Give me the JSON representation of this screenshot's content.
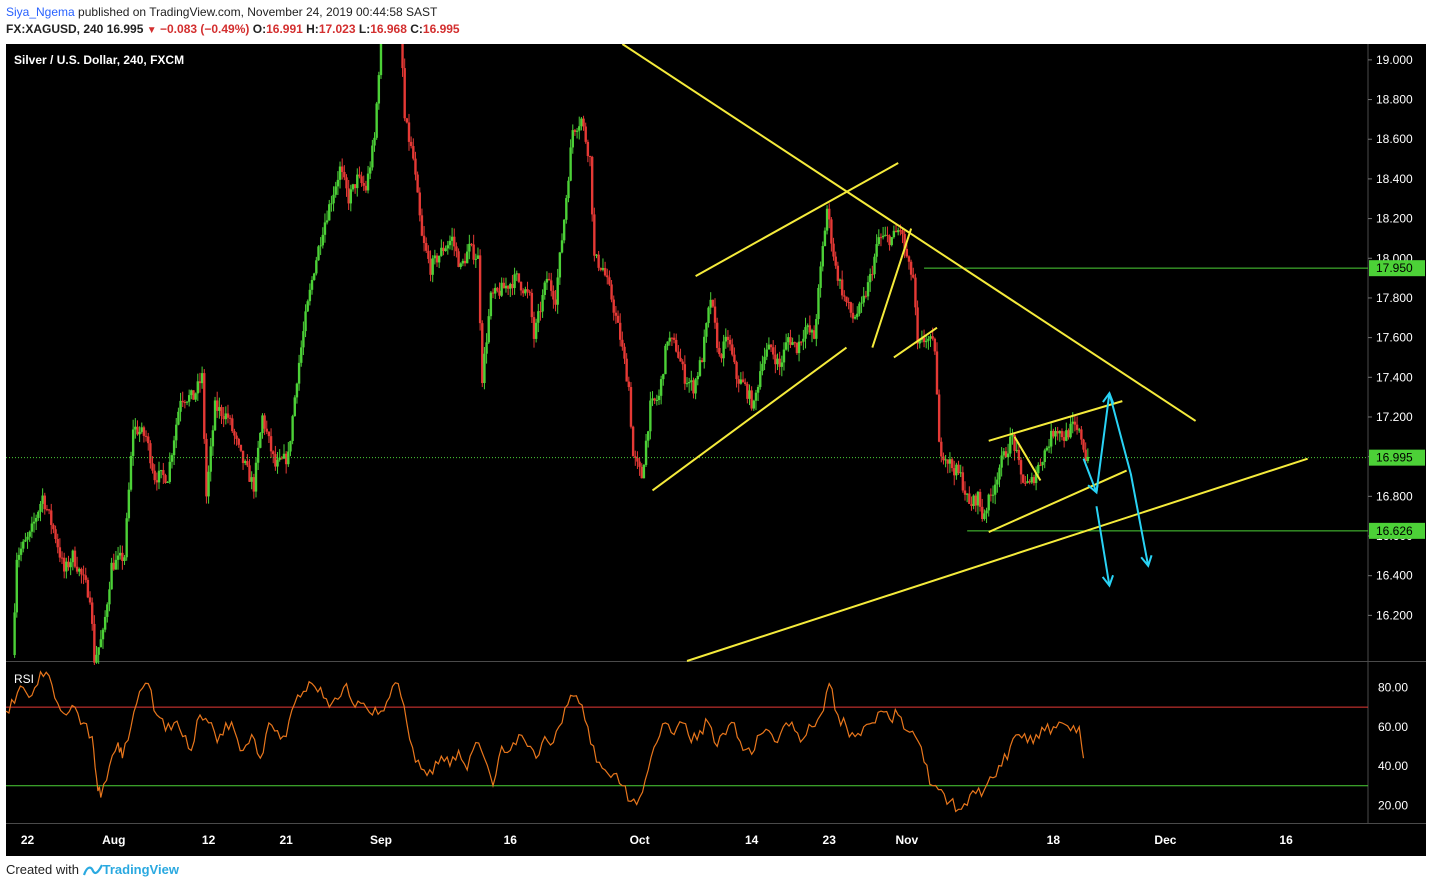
{
  "header": {
    "author": "Siya_Ngema",
    "published_text": "published on TradingView.com, November 24, 2019 00:44:58 SAST",
    "symbol": "FX:XAGUSD, 240",
    "last": "16.995",
    "change": "−0.083 (−0.49%)",
    "open_label": "O:",
    "open": "16.991",
    "high_label": "H:",
    "high": "17.023",
    "low_label": "L:",
    "low": "16.968",
    "close_label": "C:",
    "close": "16.995"
  },
  "footer": {
    "created_with": "Created with",
    "brand": "TradingView"
  },
  "colors": {
    "background": "#000000",
    "bull": "#4cd137",
    "bear": "#e53935",
    "trendline": "#f5eb3b",
    "arrow": "#29d3f5",
    "rsi": "#e8761c",
    "rsi_upper": "#e53935",
    "rsi_lower": "#4cd137",
    "level": "#4cd137"
  },
  "chart_data": [
    {
      "type": "candlestick",
      "title": "Silver / U.S. Dollar, 240, FXCM",
      "ylim": [
        15.97,
        19.08
      ],
      "y_ticks": [
        19.0,
        18.8,
        18.6,
        18.4,
        18.2,
        18.0,
        17.8,
        17.6,
        17.4,
        17.2,
        17.0,
        16.8,
        16.6,
        16.4,
        16.2
      ],
      "y_tick_labels": [
        "19.000",
        "18.800",
        "18.600",
        "18.400",
        "18.200",
        "18.000",
        "17.800",
        "17.600",
        "17.400",
        "17.200",
        "17.000",
        "16.800",
        "16.600",
        "16.400",
        "16.200"
      ],
      "x_ticks": [
        {
          "label": "22",
          "day": 0
        },
        {
          "label": "Aug",
          "day": 10
        },
        {
          "label": "12",
          "day": 21
        },
        {
          "label": "21",
          "day": 30
        },
        {
          "label": "Sep",
          "day": 41
        },
        {
          "label": "16",
          "day": 56
        },
        {
          "label": "Oct",
          "day": 71
        },
        {
          "label": "14",
          "day": 84
        },
        {
          "label": "23",
          "day": 93
        },
        {
          "label": "Nov",
          "day": 102
        },
        {
          "label": "18",
          "day": 119
        },
        {
          "label": "Dec",
          "day": 132
        },
        {
          "label": "16",
          "day": 146
        }
      ],
      "xlim": [
        -2.5,
        155.5
      ],
      "path_points": [
        [
          -1.5,
          16.0
        ],
        [
          -1.0,
          16.5
        ],
        [
          0.5,
          16.6
        ],
        [
          2.0,
          16.8
        ],
        [
          3.5,
          16.6
        ],
        [
          4.5,
          16.42
        ],
        [
          5.5,
          16.5
        ],
        [
          6.5,
          16.4
        ],
        [
          7.5,
          16.3
        ],
        [
          8.0,
          15.98
        ],
        [
          9.0,
          16.1
        ],
        [
          10.0,
          16.45
        ],
        [
          11.5,
          16.5
        ],
        [
          12.5,
          17.15
        ],
        [
          14.0,
          17.1
        ],
        [
          15.0,
          16.9
        ],
        [
          16.5,
          16.9
        ],
        [
          18.0,
          17.3
        ],
        [
          19.5,
          17.3
        ],
        [
          20.5,
          17.4
        ],
        [
          21.0,
          16.8
        ],
        [
          22.0,
          17.25
        ],
        [
          23.5,
          17.2
        ],
        [
          25.0,
          17.0
        ],
        [
          26.5,
          16.85
        ],
        [
          27.5,
          17.2
        ],
        [
          29.0,
          16.95
        ],
        [
          30.5,
          17.0
        ],
        [
          31.5,
          17.4
        ],
        [
          32.5,
          17.7
        ],
        [
          33.5,
          17.95
        ],
        [
          34.5,
          18.15
        ],
        [
          35.5,
          18.3
        ],
        [
          36.5,
          18.45
        ],
        [
          37.5,
          18.3
        ],
        [
          38.5,
          18.4
        ],
        [
          39.5,
          18.35
        ],
        [
          40.5,
          18.6
        ],
        [
          41.0,
          18.95
        ],
        [
          41.5,
          19.5
        ],
        [
          43.5,
          19.2
        ],
        [
          44.0,
          18.7
        ],
        [
          45.0,
          18.5
        ],
        [
          46.0,
          18.1
        ],
        [
          47.0,
          17.95
        ],
        [
          48.5,
          18.05
        ],
        [
          49.5,
          18.1
        ],
        [
          50.5,
          17.95
        ],
        [
          51.5,
          18.05
        ],
        [
          52.5,
          18.0
        ],
        [
          53.0,
          17.4
        ],
        [
          54.0,
          17.8
        ],
        [
          55.5,
          17.85
        ],
        [
          57.0,
          17.9
        ],
        [
          58.5,
          17.8
        ],
        [
          59.0,
          17.6
        ],
        [
          60.5,
          17.9
        ],
        [
          61.5,
          17.8
        ],
        [
          62.5,
          18.2
        ],
        [
          63.5,
          18.65
        ],
        [
          64.5,
          18.7
        ],
        [
          65.5,
          18.5
        ],
        [
          66.0,
          18.0
        ],
        [
          67.0,
          17.95
        ],
        [
          68.0,
          17.8
        ],
        [
          69.0,
          17.6
        ],
        [
          70.0,
          17.35
        ],
        [
          70.5,
          17.0
        ],
        [
          71.5,
          16.9
        ],
        [
          72.5,
          17.25
        ],
        [
          73.5,
          17.3
        ],
        [
          74.5,
          17.6
        ],
        [
          75.5,
          17.55
        ],
        [
          76.5,
          17.4
        ],
        [
          77.5,
          17.35
        ],
        [
          78.5,
          17.5
        ],
        [
          79.5,
          17.8
        ],
        [
          80.5,
          17.5
        ],
        [
          81.5,
          17.6
        ],
        [
          82.5,
          17.4
        ],
        [
          83.5,
          17.35
        ],
        [
          84.5,
          17.25
        ],
        [
          85.5,
          17.5
        ],
        [
          86.5,
          17.55
        ],
        [
          87.5,
          17.45
        ],
        [
          88.5,
          17.6
        ],
        [
          89.5,
          17.55
        ],
        [
          90.5,
          17.65
        ],
        [
          91.5,
          17.6
        ],
        [
          92.5,
          18.05
        ],
        [
          93.0,
          18.25
        ],
        [
          94.0,
          17.95
        ],
        [
          95.0,
          17.8
        ],
        [
          96.0,
          17.7
        ],
        [
          97.0,
          17.75
        ],
        [
          98.0,
          17.9
        ],
        [
          99.0,
          18.1
        ],
        [
          100.5,
          18.1
        ],
        [
          101.5,
          18.15
        ],
        [
          102.5,
          17.95
        ],
        [
          103.0,
          17.9
        ],
        [
          103.5,
          17.55
        ],
        [
          104.5,
          17.6
        ],
        [
          105.5,
          17.55
        ],
        [
          106.0,
          17.05
        ],
        [
          107.5,
          16.95
        ],
        [
          108.5,
          16.9
        ],
        [
          109.5,
          16.75
        ],
        [
          110.5,
          16.8
        ],
        [
          111.0,
          16.7
        ],
        [
          112.0,
          16.8
        ],
        [
          113.0,
          16.95
        ],
        [
          114.0,
          17.05
        ],
        [
          114.5,
          17.1
        ],
        [
          115.5,
          16.9
        ],
        [
          116.5,
          16.85
        ],
        [
          117.5,
          16.95
        ],
        [
          118.5,
          17.05
        ],
        [
          119.5,
          17.15
        ],
        [
          120.5,
          17.1
        ],
        [
          121.5,
          17.15
        ],
        [
          122.5,
          17.1
        ],
        [
          123.0,
          17.0
        ]
      ],
      "trend_lines": [
        {
          "from": [
            72.5,
            16.83
          ],
          "to": [
            95.0,
            17.55
          ]
        },
        {
          "from": [
            77.5,
            17.91
          ],
          "to": [
            101.0,
            18.48
          ]
        },
        {
          "from": [
            69.0,
            19.08
          ],
          "to": [
            135.5,
            17.18
          ]
        },
        {
          "from": [
            98.0,
            17.55
          ],
          "to": [
            102.5,
            18.15
          ]
        },
        {
          "from": [
            100.5,
            17.5
          ],
          "to": [
            105.5,
            17.65
          ]
        },
        {
          "from": [
            76.5,
            15.97
          ],
          "to": [
            148.5,
            16.99
          ]
        },
        {
          "from": [
            111.5,
            16.62
          ],
          "to": [
            127.5,
            16.93
          ]
        },
        {
          "from": [
            111.5,
            17.08
          ],
          "to": [
            127.0,
            17.28
          ]
        },
        {
          "from": [
            114.5,
            17.1
          ],
          "to": [
            117.5,
            16.88
          ]
        }
      ],
      "projection_arrows": [
        [
          [
            122.5,
            16.99
          ],
          [
            124.0,
            16.82
          ],
          [
            125.5,
            17.32
          ],
          [
            128.0,
            16.91
          ],
          [
            130.0,
            16.45
          ]
        ],
        [
          [
            124.0,
            16.75
          ],
          [
            125.5,
            16.35
          ]
        ]
      ],
      "levels": [
        {
          "price": 17.95,
          "label": "17.950",
          "from_day": 104.0,
          "style": "solid"
        },
        {
          "price": 16.995,
          "label": "16.995",
          "from_day": -2.5,
          "style": "dotted"
        },
        {
          "price": 16.626,
          "label": "16.626",
          "from_day": 109.0,
          "style": "solid"
        }
      ]
    },
    {
      "type": "line",
      "title": "RSI",
      "ylim": [
        11,
        93
      ],
      "y_ticks": [
        80,
        60,
        40,
        20
      ],
      "y_tick_labels": [
        "80.00",
        "60.00",
        "40.00",
        "20.00"
      ],
      "bands": [
        70,
        30
      ],
      "path_points": [
        [
          -2.5,
          68
        ],
        [
          -1.5,
          72
        ],
        [
          -0.5,
          80
        ],
        [
          0.5,
          76
        ],
        [
          1.5,
          88
        ],
        [
          2.5,
          86
        ],
        [
          3.5,
          72
        ],
        [
          4.5,
          66
        ],
        [
          5.5,
          70
        ],
        [
          6.5,
          62
        ],
        [
          7.5,
          55
        ],
        [
          8.0,
          34
        ],
        [
          8.5,
          24
        ],
        [
          9.5,
          40
        ],
        [
          10.5,
          52
        ],
        [
          11.0,
          44
        ],
        [
          12.0,
          60
        ],
        [
          13.0,
          78
        ],
        [
          14.0,
          82
        ],
        [
          15.0,
          66
        ],
        [
          16.0,
          58
        ],
        [
          17.0,
          62
        ],
        [
          18.0,
          55
        ],
        [
          19.0,
          48
        ],
        [
          20.0,
          66
        ],
        [
          21.0,
          62
        ],
        [
          22.0,
          52
        ],
        [
          23.0,
          62
        ],
        [
          24.0,
          58
        ],
        [
          25.0,
          48
        ],
        [
          26.0,
          56
        ],
        [
          27.0,
          44
        ],
        [
          28.0,
          62
        ],
        [
          29.0,
          58
        ],
        [
          30.0,
          55
        ],
        [
          31.0,
          72
        ],
        [
          32.0,
          78
        ],
        [
          33.0,
          82
        ],
        [
          34.0,
          80
        ],
        [
          35.0,
          70
        ],
        [
          36.0,
          74
        ],
        [
          37.0,
          82
        ],
        [
          38.0,
          70
        ],
        [
          39.0,
          72
        ],
        [
          40.0,
          66
        ],
        [
          41.0,
          68
        ],
        [
          42.0,
          75
        ],
        [
          43.0,
          82
        ],
        [
          44.0,
          62
        ],
        [
          45.0,
          42
        ],
        [
          46.0,
          38
        ],
        [
          47.0,
          36
        ],
        [
          48.0,
          45
        ],
        [
          49.0,
          40
        ],
        [
          50.0,
          48
        ],
        [
          51.0,
          38
        ],
        [
          52.0,
          52
        ],
        [
          53.0,
          44
        ],
        [
          54.0,
          30
        ],
        [
          55.0,
          50
        ],
        [
          56.0,
          48
        ],
        [
          57.0,
          56
        ],
        [
          58.0,
          50
        ],
        [
          59.0,
          44
        ],
        [
          60.0,
          55
        ],
        [
          61.0,
          52
        ],
        [
          62.0,
          62
        ],
        [
          63.0,
          76
        ],
        [
          64.0,
          72
        ],
        [
          65.0,
          60
        ],
        [
          66.0,
          42
        ],
        [
          67.0,
          38
        ],
        [
          68.0,
          36
        ],
        [
          69.0,
          30
        ],
        [
          70.0,
          22
        ],
        [
          71.0,
          24
        ],
        [
          72.0,
          38
        ],
        [
          73.0,
          52
        ],
        [
          74.0,
          62
        ],
        [
          75.0,
          56
        ],
        [
          76.0,
          62
        ],
        [
          77.0,
          52
        ],
        [
          78.0,
          58
        ],
        [
          79.0,
          62
        ],
        [
          80.0,
          50
        ],
        [
          81.0,
          56
        ],
        [
          82.0,
          62
        ],
        [
          83.0,
          48
        ],
        [
          84.0,
          46
        ],
        [
          85.0,
          56
        ],
        [
          86.0,
          58
        ],
        [
          87.0,
          52
        ],
        [
          88.0,
          62
        ],
        [
          89.0,
          58
        ],
        [
          90.0,
          54
        ],
        [
          91.0,
          60
        ],
        [
          92.0,
          66
        ],
        [
          93.0,
          82
        ],
        [
          94.0,
          66
        ],
        [
          95.0,
          60
        ],
        [
          96.0,
          55
        ],
        [
          97.0,
          60
        ],
        [
          98.0,
          62
        ],
        [
          99.0,
          68
        ],
        [
          100.0,
          64
        ],
        [
          101.0,
          66
        ],
        [
          102.0,
          58
        ],
        [
          103.0,
          55
        ],
        [
          104.0,
          42
        ],
        [
          105.0,
          30
        ],
        [
          106.0,
          28
        ],
        [
          107.0,
          22
        ],
        [
          108.0,
          18
        ],
        [
          109.0,
          20
        ],
        [
          110.0,
          26
        ],
        [
          111.0,
          28
        ],
        [
          112.0,
          34
        ],
        [
          113.0,
          40
        ],
        [
          114.0,
          50
        ],
        [
          115.0,
          56
        ],
        [
          116.0,
          52
        ],
        [
          117.0,
          56
        ],
        [
          118.0,
          58
        ],
        [
          119.0,
          60
        ],
        [
          120.0,
          62
        ],
        [
          121.0,
          58
        ],
        [
          122.0,
          60
        ],
        [
          122.5,
          44
        ]
      ]
    }
  ]
}
